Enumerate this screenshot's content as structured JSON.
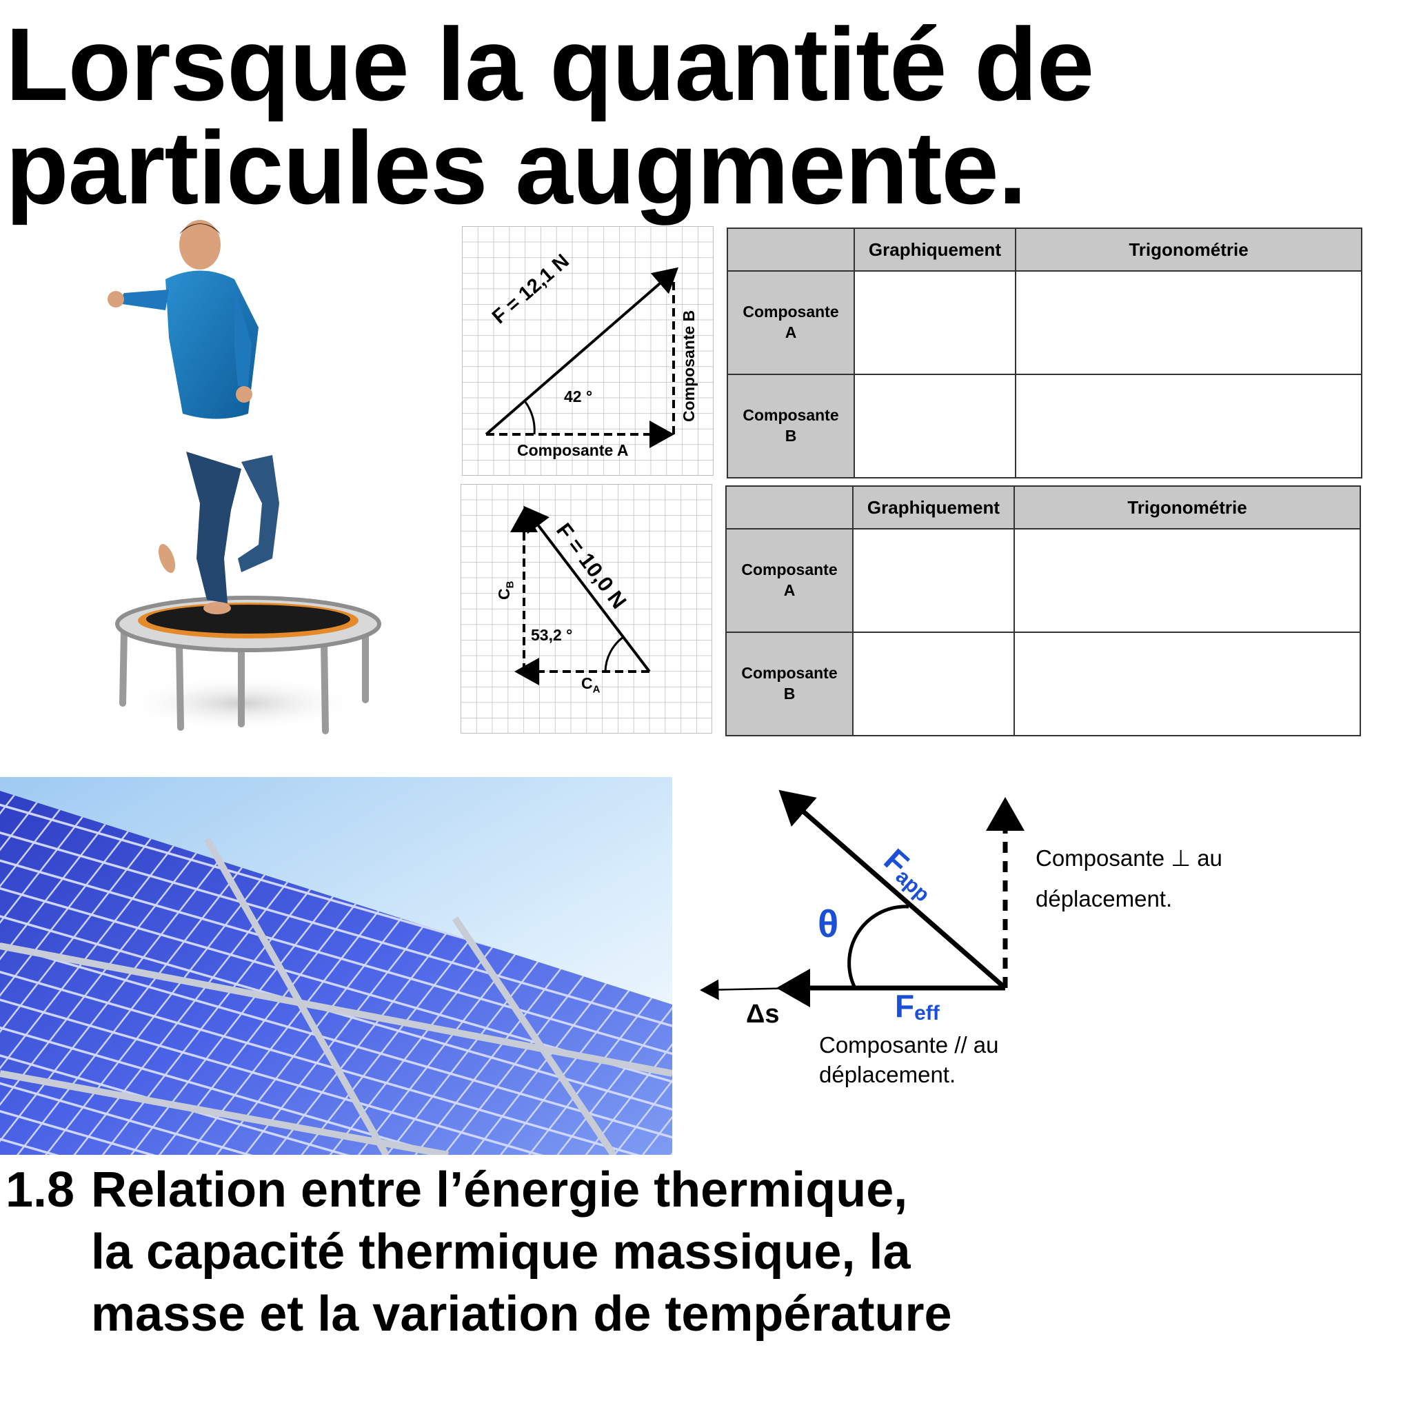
{
  "heading": {
    "line1": "Lorsque la quantité de",
    "line2": "particules augmente."
  },
  "diagram1": {
    "force_label": "F = 12,1 N",
    "angle_label": "42 °",
    "horizontal_label": "Composante A",
    "vertical_label": "Composante B"
  },
  "diagram2": {
    "force_label": "F = 10,0 N",
    "angle_label": "53,2 °",
    "horizontal_label": "C",
    "horizontal_sub": "A",
    "vertical_label": "C",
    "vertical_sub": "B"
  },
  "table1": {
    "col_graph": "Graphiquement",
    "col_trig": "Trigonométrie",
    "row_a_line1": "Composante",
    "row_a_line2": "A",
    "row_b_line1": "Composante",
    "row_b_line2": "B"
  },
  "table2": {
    "col_graph": "Graphiquement",
    "col_trig": "Trigonométrie",
    "row_a_line1": "Composante",
    "row_a_line2": "A",
    "row_b_line1": "Composante",
    "row_b_line2": "B"
  },
  "work_diagram": {
    "f_app": "F",
    "f_app_sub": "app",
    "theta": "θ",
    "displacement": "Δs",
    "f_eff": "F",
    "f_eff_sub": "eff",
    "perp_line1": "Composante ⊥ au",
    "perp_line2": "déplacement.",
    "par_line1": "Composante // au",
    "par_line2": "déplacement."
  },
  "section": {
    "number": "1.8",
    "line1": "Relation entre l’énergie thermique,",
    "line2": "la capacité thermique massique, la",
    "line3": "masse et la variation de température"
  },
  "colors": {
    "accent_blue": "#1a4fd6",
    "table_header_gray": "#c8c8c8",
    "grid_gray": "#bdbdbd"
  }
}
